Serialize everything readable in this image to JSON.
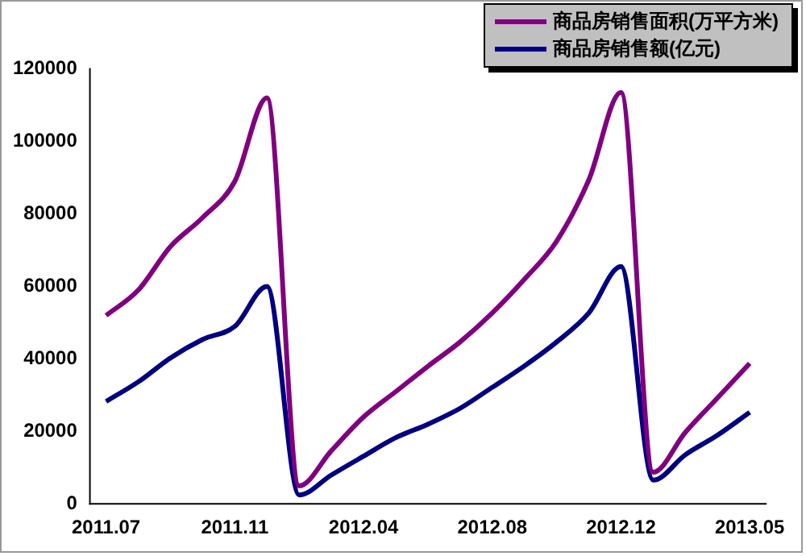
{
  "chart_data": {
    "type": "line",
    "categories": [
      "2011.07",
      null,
      null,
      null,
      "2011.11",
      null,
      null,
      null,
      "2012.04",
      null,
      null,
      null,
      "2012.08",
      null,
      null,
      null,
      "2012.12",
      null,
      null,
      null,
      "2013.05"
    ],
    "series": [
      {
        "name": "商品房销售面积(万平方米)",
        "color": "#800080",
        "values": [
          52000,
          59000,
          71000,
          79000,
          89000,
          112000,
          5000,
          14700,
          24000,
          31000,
          38000,
          44700,
          52700,
          62000,
          72500,
          89400,
          113500,
          8800,
          19800,
          29300,
          38800
        ]
      },
      {
        "name": "商品房销售额(亿元)",
        "color": "#000080",
        "values": [
          28300,
          33700,
          40300,
          45400,
          49000,
          60000,
          2500,
          8000,
          13200,
          18300,
          22000,
          26400,
          32200,
          38100,
          44700,
          52700,
          65500,
          6600,
          13600,
          19000,
          25300
        ]
      }
    ],
    "ylim": [
      0,
      120000
    ],
    "yticks": [
      0,
      20000,
      40000,
      60000,
      80000,
      100000,
      120000
    ],
    "grid": false,
    "legend": "top right",
    "marker": "none",
    "line_style": "solid"
  }
}
